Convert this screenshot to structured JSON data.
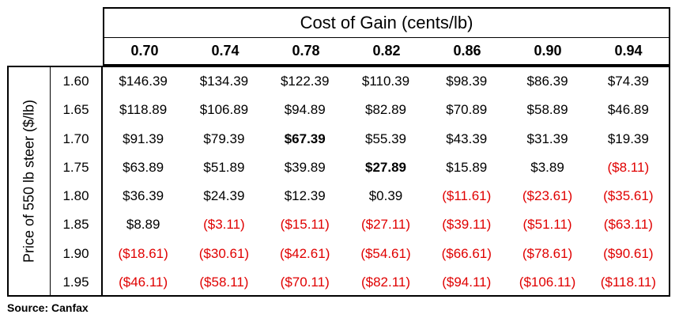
{
  "table": {
    "col_group_title": "Cost of Gain (cents/lb)",
    "row_group_title": "Price of 550 lb steer ($/lb)",
    "columns": [
      "0.70",
      "0.74",
      "0.78",
      "0.82",
      "0.86",
      "0.90",
      "0.94"
    ],
    "negative_color": "#e00000",
    "rows": [
      {
        "label": "1.60",
        "cells": [
          {
            "v": "$146.39"
          },
          {
            "v": "$134.39"
          },
          {
            "v": "$122.39"
          },
          {
            "v": "$110.39"
          },
          {
            "v": "$98.39"
          },
          {
            "v": "$86.39"
          },
          {
            "v": "$74.39"
          }
        ]
      },
      {
        "label": "1.65",
        "cells": [
          {
            "v": "$118.89"
          },
          {
            "v": "$106.89"
          },
          {
            "v": "$94.89"
          },
          {
            "v": "$82.89"
          },
          {
            "v": "$70.89"
          },
          {
            "v": "$58.89"
          },
          {
            "v": "$46.89"
          }
        ]
      },
      {
        "label": "1.70",
        "cells": [
          {
            "v": "$91.39"
          },
          {
            "v": "$79.39"
          },
          {
            "v": "$67.39",
            "bold": true
          },
          {
            "v": "$55.39"
          },
          {
            "v": "$43.39"
          },
          {
            "v": "$31.39"
          },
          {
            "v": "$19.39"
          }
        ]
      },
      {
        "label": "1.75",
        "cells": [
          {
            "v": "$63.89"
          },
          {
            "v": "$51.89"
          },
          {
            "v": "$39.89"
          },
          {
            "v": "$27.89",
            "bold": true
          },
          {
            "v": "$15.89"
          },
          {
            "v": "$3.89"
          },
          {
            "v": "($8.11)",
            "neg": true
          }
        ]
      },
      {
        "label": "1.80",
        "cells": [
          {
            "v": "$36.39"
          },
          {
            "v": "$24.39"
          },
          {
            "v": "$12.39"
          },
          {
            "v": "$0.39"
          },
          {
            "v": "($11.61)",
            "neg": true
          },
          {
            "v": "($23.61)",
            "neg": true
          },
          {
            "v": "($35.61)",
            "neg": true
          }
        ]
      },
      {
        "label": "1.85",
        "cells": [
          {
            "v": "$8.89"
          },
          {
            "v": "($3.11)",
            "neg": true
          },
          {
            "v": "($15.11)",
            "neg": true
          },
          {
            "v": "($27.11)",
            "neg": true
          },
          {
            "v": "($39.11)",
            "neg": true
          },
          {
            "v": "($51.11)",
            "neg": true
          },
          {
            "v": "($63.11)",
            "neg": true
          }
        ]
      },
      {
        "label": "1.90",
        "cells": [
          {
            "v": "($18.61)",
            "neg": true
          },
          {
            "v": "($30.61)",
            "neg": true
          },
          {
            "v": "($42.61)",
            "neg": true
          },
          {
            "v": "($54.61)",
            "neg": true
          },
          {
            "v": "($66.61)",
            "neg": true
          },
          {
            "v": "($78.61)",
            "neg": true
          },
          {
            "v": "($90.61)",
            "neg": true
          }
        ]
      },
      {
        "label": "1.95",
        "cells": [
          {
            "v": "($46.11)",
            "neg": true
          },
          {
            "v": "($58.11)",
            "neg": true
          },
          {
            "v": "($70.11)",
            "neg": true
          },
          {
            "v": "($82.11)",
            "neg": true
          },
          {
            "v": "($94.11)",
            "neg": true
          },
          {
            "v": "($106.11)",
            "neg": true
          },
          {
            "v": "($118.11)",
            "neg": true
          }
        ]
      }
    ]
  },
  "source": "Source: Canfax"
}
